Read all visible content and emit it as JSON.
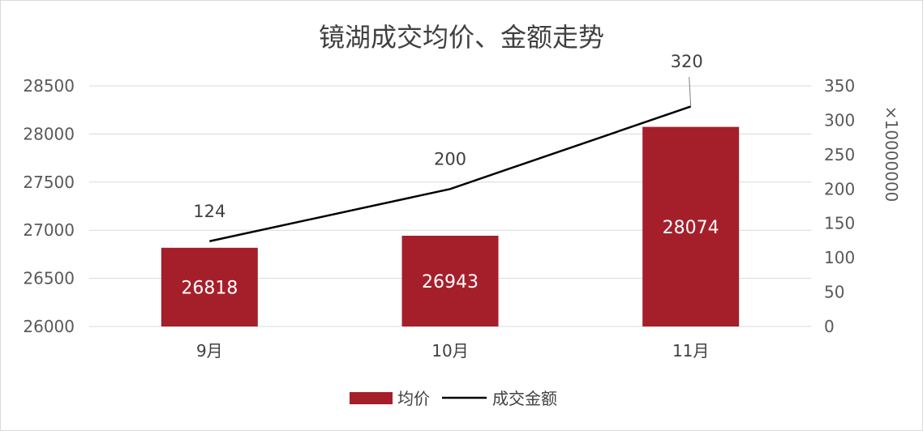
{
  "chart_data": {
    "type": "bar+line",
    "title": "镜湖成交均价、金额走势",
    "categories": [
      "9月",
      "10月",
      "11月"
    ],
    "series": [
      {
        "name": "均价",
        "type": "bar",
        "axis": "left",
        "values": [
          26818,
          26943,
          28074
        ],
        "color": "#a51f2b"
      },
      {
        "name": "成交金额",
        "type": "line",
        "axis": "right",
        "values": [
          124,
          200,
          320
        ],
        "color": "#000000"
      }
    ],
    "y_left": {
      "min": 26000,
      "max": 28500,
      "ticks": [
        26000,
        26500,
        27000,
        27500,
        28000,
        28500
      ]
    },
    "y_right": {
      "min": 0,
      "max": 350,
      "ticks": [
        0,
        50,
        100,
        150,
        200,
        250,
        300,
        350
      ],
      "multiplier_label": "×10000000"
    },
    "grid": true,
    "legend_position": "bottom"
  }
}
